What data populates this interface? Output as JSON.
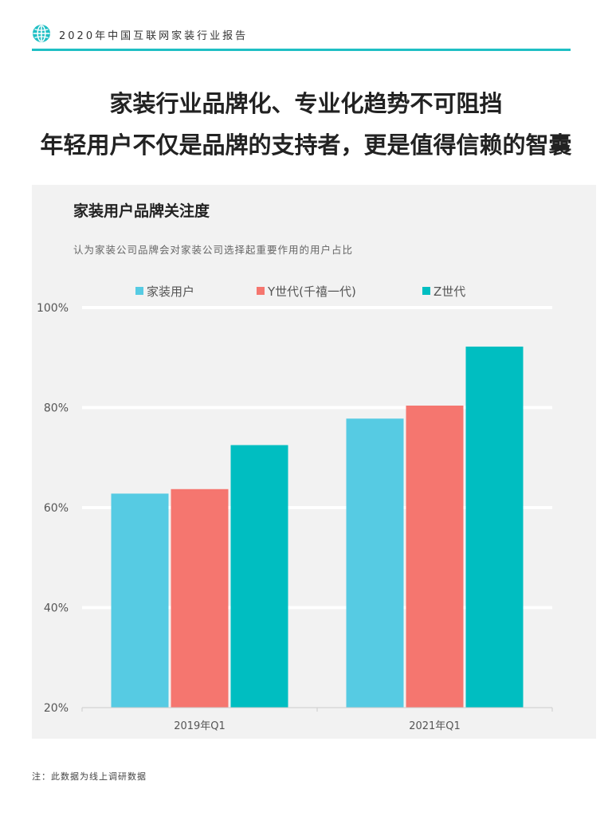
{
  "header": {
    "report_name": "2020年中国互联网家装行业报告",
    "icon": "globe-icon",
    "accent_color": "#1fbfc4"
  },
  "headline": {
    "line1": "家装行业品牌化、专业化趋势不可阻挡",
    "line2": "年轻用户不仅是品牌的支持者，更是值得信赖的智囊"
  },
  "chart_data": {
    "type": "bar",
    "title": "家装用户品牌关注度",
    "subtitle": "认为家装公司品牌会对家装公司选择起重要作用的用户占比",
    "categories": [
      "2019年Q1",
      "2021年Q1"
    ],
    "series": [
      {
        "name": "家装用户",
        "color": "#56cbe3",
        "values": [
          62.8,
          77.8
        ]
      },
      {
        "name": "Y世代(千禧一代)",
        "color": "#f5766f",
        "values": [
          63.7,
          80.4
        ]
      },
      {
        "name": "Z世代",
        "color": "#00bec1",
        "values": [
          72.5,
          92.2
        ]
      }
    ],
    "ylim": [
      20,
      100
    ],
    "yticks": [
      20,
      40,
      60,
      80,
      100
    ],
    "ytick_labels": [
      "20%",
      "40%",
      "60%",
      "80%",
      "100%"
    ],
    "grid": true,
    "legend_position": "top"
  },
  "footnote": "注：此数据为线上调研数据"
}
